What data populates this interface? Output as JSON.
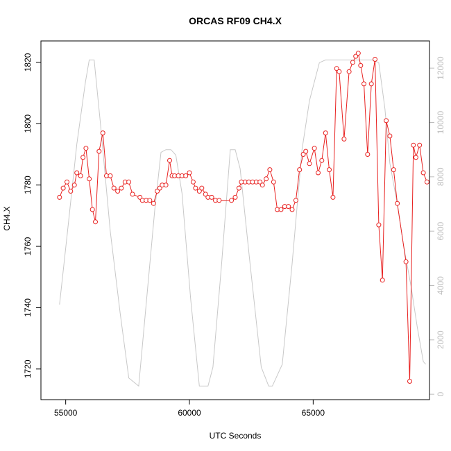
{
  "chart_data": {
    "type": "line",
    "title": "ORCAS RF09 CH4.X",
    "xlabel": "UTC Seconds",
    "ylabel": "CH4.X",
    "xlim": [
      54000,
      69700
    ],
    "ylim": [
      1710,
      1827
    ],
    "y2lim": [
      -200,
      13000
    ],
    "x_ticks": [
      55000,
      60000,
      65000
    ],
    "y_ticks": [
      1720,
      1740,
      1760,
      1780,
      1800,
      1820
    ],
    "y2_ticks": [
      0,
      2000,
      4000,
      6000,
      8000,
      10000,
      12000
    ],
    "colors": {
      "primary": "#e8201f",
      "secondary": "#c8c8c8"
    },
    "series": [
      {
        "axis": "left",
        "style": "line+circle",
        "color": "#e8201f",
        "x": [
          54750,
          54900,
          55050,
          55200,
          55350,
          55450,
          55600,
          55700,
          55820,
          55950,
          56080,
          56200,
          56350,
          56500,
          56650,
          56800,
          56950,
          57100,
          57250,
          57400,
          57550,
          57700,
          58000,
          58100,
          58250,
          58400,
          58550,
          58700,
          58800,
          58900,
          59050,
          59200,
          59300,
          59400,
          59550,
          59700,
          59850,
          60000,
          60150,
          60250,
          60400,
          60500,
          60650,
          60750,
          60900,
          61050,
          61200,
          61700,
          61850,
          62000,
          62100,
          62250,
          62400,
          62550,
          62700,
          62850,
          62950,
          63100,
          63250,
          63400,
          63550,
          63700,
          63850,
          64000,
          64150,
          64300,
          64450,
          64600,
          64700,
          64850,
          65050,
          65200,
          65350,
          65500,
          65650,
          65800,
          65950,
          66050,
          66250,
          66450,
          66600,
          66720,
          66820,
          66920,
          67050,
          67200,
          67350,
          67500,
          67650,
          67800,
          67950,
          68100,
          68250,
          68400,
          68750,
          68900,
          69050,
          69150,
          69300,
          69450,
          69600
        ],
        "y": [
          1776,
          1779,
          1781,
          1778,
          1780,
          1784,
          1783,
          1789,
          1792,
          1782,
          1772,
          1768,
          1791,
          1797,
          1783,
          1783,
          1779,
          1778,
          1779,
          1781,
          1781,
          1777,
          1776,
          1775,
          1775,
          1775,
          1774,
          1778,
          1779,
          1780,
          1780,
          1788,
          1783,
          1783,
          1783,
          1783,
          1783,
          1784,
          1781,
          1779,
          1778,
          1779,
          1777,
          1776,
          1776,
          1775,
          1775,
          1775,
          1776,
          1779,
          1781,
          1781,
          1781,
          1781,
          1781,
          1781,
          1780,
          1782,
          1785,
          1781,
          1772,
          1772,
          1773,
          1773,
          1772,
          1775,
          1785,
          1790,
          1791,
          1787,
          1792,
          1784,
          1788,
          1797,
          1785,
          1776,
          1818,
          1817,
          1795,
          1817,
          1820,
          1822,
          1823,
          1819,
          1813,
          1790,
          1813,
          1821,
          1767,
          1749,
          1801,
          1796,
          1785,
          1774,
          1755,
          1716,
          1793,
          1789,
          1793,
          1784,
          1781
        ]
      },
      {
        "axis": "right",
        "style": "line",
        "color": "#c8c8c8",
        "x": [
          54750,
          55100,
          55450,
          55800,
          55950,
          56150,
          56400,
          56800,
          57200,
          57550,
          57950,
          58300,
          58600,
          58850,
          59050,
          59250,
          59450,
          59700,
          60050,
          60400,
          60650,
          60750,
          60950,
          61300,
          61650,
          61850,
          62050,
          62450,
          62900,
          63200,
          63350,
          63500,
          63750,
          64150,
          64550,
          64850,
          65250,
          65500,
          66000,
          66500,
          67000,
          67400,
          67650,
          67900,
          68100,
          68400,
          68650,
          68950,
          69200,
          69450,
          69550
        ],
        "y": [
          3300,
          6200,
          9200,
          11500,
          12300,
          12300,
          10000,
          6000,
          3000,
          600,
          300,
          3800,
          6800,
          8900,
          9000,
          9000,
          8800,
          7400,
          3500,
          300,
          300,
          300,
          1000,
          4800,
          9000,
          9000,
          8300,
          4800,
          1000,
          300,
          300,
          600,
          1100,
          4800,
          9000,
          10800,
          12200,
          12300,
          12300,
          12300,
          12300,
          12300,
          12200,
          10500,
          8500,
          7000,
          5500,
          4000,
          2500,
          1200,
          1100
        ]
      }
    ]
  }
}
